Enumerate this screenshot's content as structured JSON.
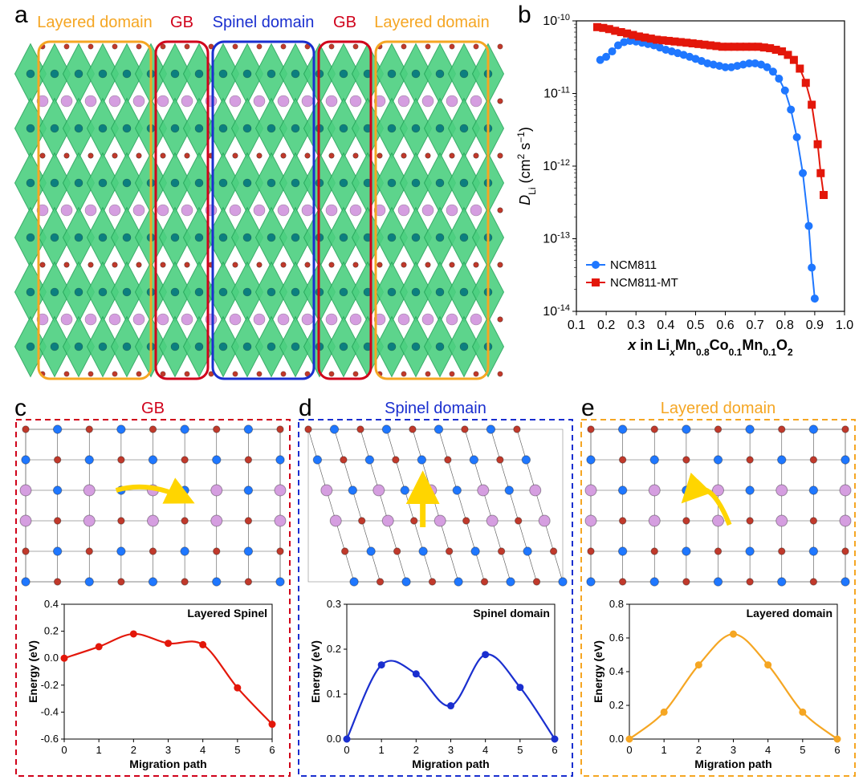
{
  "panels": {
    "a": {
      "label": "a"
    },
    "b": {
      "label": "b"
    },
    "c": {
      "label": "c"
    },
    "d": {
      "label": "d"
    },
    "e": {
      "label": "e"
    }
  },
  "panel_a": {
    "domain_labels": {
      "layered_left": {
        "text": "Layered domain",
        "color": "#f5a623"
      },
      "gb_left": {
        "text": "GB",
        "color": "#d0021b"
      },
      "spinel": {
        "text": "Spinel domain",
        "color": "#1a2fcf"
      },
      "gb_right": {
        "text": "GB",
        "color": "#d0021b"
      },
      "layered_right": {
        "text": "Layered domain",
        "color": "#f5a623"
      }
    },
    "box_colors": {
      "layered": "#f5a623",
      "gb": "#d0021b",
      "spinel": "#1a2fcf"
    },
    "atom_colors": {
      "polyhedra_fill": "#4cd080",
      "polyhedra_edge": "#26a65b",
      "metal": "#0c7f7f",
      "li": "#d59ee0",
      "o": "#c0392b"
    },
    "rows": 6,
    "layered_cols_each_side": 3,
    "spinel_cols": 2
  },
  "panel_b": {
    "type": "semilogy-scatter-line",
    "title": "",
    "xlabel_html": "<tspan font-style='italic'>x</tspan> in Li<tspan font-style='italic' baseline-shift='sub' font-size='12'>x</tspan>Mn<tspan baseline-shift='sub' font-size='12'>0.8</tspan>Co<tspan baseline-shift='sub' font-size='12'>0.1</tspan>Mn<tspan baseline-shift='sub' font-size='12'>0.1</tspan>O<tspan baseline-shift='sub' font-size='12'>2</tspan>",
    "ylabel_html": "<tspan font-style='italic'>D</tspan><tspan baseline-shift='sub' font-size='12'>Li</tspan> (cm<tspan baseline-shift='super' font-size='12'>2</tspan> s<tspan baseline-shift='super' font-size='12'>−1</tspan>)",
    "xlim": [
      0.1,
      1.0
    ],
    "xticks": [
      0.1,
      0.2,
      0.3,
      0.4,
      0.5,
      0.6,
      0.7,
      0.8,
      0.9,
      1.0
    ],
    "ylim": [
      1e-14,
      1e-10
    ],
    "yticks_exp": [
      -14,
      -13,
      -12,
      -11,
      -10
    ],
    "axis_fontsize": 18,
    "tick_fontsize": 16,
    "series": [
      {
        "name": "NCM811",
        "marker": "circle",
        "color": "#1f77ff",
        "data": [
          [
            0.18,
            2.9e-11
          ],
          [
            0.2,
            3.2e-11
          ],
          [
            0.22,
            3.8e-11
          ],
          [
            0.24,
            4.6e-11
          ],
          [
            0.26,
            5.1e-11
          ],
          [
            0.28,
            5.3e-11
          ],
          [
            0.3,
            5.2e-11
          ],
          [
            0.32,
            5e-11
          ],
          [
            0.34,
            4.8e-11
          ],
          [
            0.36,
            4.6e-11
          ],
          [
            0.38,
            4.3e-11
          ],
          [
            0.4,
            4e-11
          ],
          [
            0.42,
            3.8e-11
          ],
          [
            0.44,
            3.6e-11
          ],
          [
            0.46,
            3.4e-11
          ],
          [
            0.48,
            3.2e-11
          ],
          [
            0.5,
            3e-11
          ],
          [
            0.52,
            2.8e-11
          ],
          [
            0.54,
            2.6e-11
          ],
          [
            0.56,
            2.5e-11
          ],
          [
            0.58,
            2.4e-11
          ],
          [
            0.6,
            2.3e-11
          ],
          [
            0.62,
            2.3e-11
          ],
          [
            0.64,
            2.4e-11
          ],
          [
            0.66,
            2.5e-11
          ],
          [
            0.68,
            2.6e-11
          ],
          [
            0.7,
            2.6e-11
          ],
          [
            0.72,
            2.5e-11
          ],
          [
            0.74,
            2.3e-11
          ],
          [
            0.76,
            2e-11
          ],
          [
            0.78,
            1.6e-11
          ],
          [
            0.8,
            1.1e-11
          ],
          [
            0.82,
            6e-12
          ],
          [
            0.84,
            2.5e-12
          ],
          [
            0.86,
            8e-13
          ],
          [
            0.88,
            1.5e-13
          ],
          [
            0.89,
            4e-14
          ],
          [
            0.9,
            1.5e-14
          ]
        ]
      },
      {
        "name": "NCM811-MT",
        "marker": "square",
        "color": "#e3170a",
        "data": [
          [
            0.17,
            8.2e-11
          ],
          [
            0.19,
            8e-11
          ],
          [
            0.21,
            7.7e-11
          ],
          [
            0.23,
            7.3e-11
          ],
          [
            0.25,
            7e-11
          ],
          [
            0.27,
            6.7e-11
          ],
          [
            0.29,
            6.4e-11
          ],
          [
            0.31,
            6.1e-11
          ],
          [
            0.33,
            5.9e-11
          ],
          [
            0.35,
            5.7e-11
          ],
          [
            0.37,
            5.5e-11
          ],
          [
            0.39,
            5.4e-11
          ],
          [
            0.41,
            5.3e-11
          ],
          [
            0.43,
            5.2e-11
          ],
          [
            0.45,
            5.1e-11
          ],
          [
            0.47,
            5e-11
          ],
          [
            0.49,
            4.9e-11
          ],
          [
            0.51,
            4.8e-11
          ],
          [
            0.53,
            4.7e-11
          ],
          [
            0.55,
            4.6e-11
          ],
          [
            0.57,
            4.5e-11
          ],
          [
            0.59,
            4.4e-11
          ],
          [
            0.61,
            4.4e-11
          ],
          [
            0.63,
            4.4e-11
          ],
          [
            0.65,
            4.4e-11
          ],
          [
            0.67,
            4.4e-11
          ],
          [
            0.69,
            4.4e-11
          ],
          [
            0.71,
            4.4e-11
          ],
          [
            0.73,
            4.3e-11
          ],
          [
            0.75,
            4.2e-11
          ],
          [
            0.77,
            4e-11
          ],
          [
            0.79,
            3.8e-11
          ],
          [
            0.81,
            3.4e-11
          ],
          [
            0.83,
            2.9e-11
          ],
          [
            0.85,
            2.2e-11
          ],
          [
            0.87,
            1.4e-11
          ],
          [
            0.89,
            7e-12
          ],
          [
            0.91,
            2e-12
          ],
          [
            0.92,
            8e-13
          ],
          [
            0.93,
            4e-13
          ]
        ]
      }
    ],
    "legend_pos": "lower-left",
    "legend_fontsize": 15
  },
  "panel_c": {
    "title": "GB",
    "title_color": "#d0021b",
    "dash_color": "#d0021b",
    "atom_colors": {
      "metal": "#1f77ff",
      "li": "#d59ee0",
      "o": "#c0392b"
    },
    "path_arrow_color": "#ffd500",
    "chart": {
      "type": "line",
      "title": "Layered Spinel",
      "title_fontsize": 14,
      "xlabel": "Migration path",
      "ylabel": "Energy (eV)",
      "xlim": [
        0,
        6
      ],
      "xticks": [
        0,
        1,
        2,
        3,
        4,
        5,
        6
      ],
      "ylim": [
        -0.6,
        0.4
      ],
      "yticks": [
        -0.6,
        -0.4,
        -0.2,
        0.0,
        0.2,
        0.4
      ],
      "color": "#e3170a",
      "marker": "circle",
      "data": [
        [
          0,
          0.0
        ],
        [
          1,
          0.085
        ],
        [
          2,
          0.18
        ],
        [
          3,
          0.11
        ],
        [
          4,
          0.1
        ],
        [
          5,
          -0.22
        ],
        [
          6,
          -0.49
        ]
      ]
    }
  },
  "panel_d": {
    "title": "Spinel domain",
    "title_color": "#1a2fcf",
    "dash_color": "#1a2fcf",
    "atom_colors": {
      "metal": "#1f77ff",
      "li": "#d59ee0",
      "o": "#c0392b"
    },
    "path_arrow_color": "#ffd500",
    "chart": {
      "type": "line",
      "title": "Spinel domain",
      "title_fontsize": 14,
      "xlabel": "Migration path",
      "ylabel": "Energy (eV)",
      "xlim": [
        0,
        6
      ],
      "xticks": [
        0,
        1,
        2,
        3,
        4,
        5,
        6
      ],
      "ylim": [
        0.0,
        0.3
      ],
      "yticks": [
        0.0,
        0.1,
        0.2,
        0.3
      ],
      "color": "#1a2fcf",
      "marker": "circle",
      "data": [
        [
          0,
          0.0
        ],
        [
          1,
          0.165
        ],
        [
          2,
          0.145
        ],
        [
          3,
          0.074
        ],
        [
          4,
          0.188
        ],
        [
          5,
          0.115
        ],
        [
          6,
          0.0
        ]
      ]
    }
  },
  "panel_e": {
    "title": "Layered domain",
    "title_color": "#f5a623",
    "dash_color": "#f5a623",
    "atom_colors": {
      "metal": "#1f77ff",
      "li": "#d59ee0",
      "o": "#c0392b"
    },
    "path_arrow_color": "#ffd500",
    "chart": {
      "type": "line",
      "title": "Layered domain",
      "title_fontsize": 14,
      "xlabel": "Migration path",
      "ylabel": "Energy (eV)",
      "xlim": [
        0,
        6
      ],
      "xticks": [
        0,
        1,
        2,
        3,
        4,
        5,
        6
      ],
      "ylim": [
        0.0,
        0.8
      ],
      "yticks": [
        0.0,
        0.2,
        0.4,
        0.6,
        0.8
      ],
      "color": "#f5a623",
      "marker": "circle",
      "data": [
        [
          0,
          0.0
        ],
        [
          1,
          0.16
        ],
        [
          2,
          0.44
        ],
        [
          3,
          0.623
        ],
        [
          4,
          0.44
        ],
        [
          5,
          0.16
        ],
        [
          6,
          0.0
        ]
      ]
    }
  },
  "layout": {
    "figure_size": [
      1080,
      977
    ],
    "panel_a_box": [
      18,
      8,
      620,
      470
    ],
    "panel_b_box": [
      640,
      8,
      432,
      440
    ],
    "panel_c_box": [
      18,
      495,
      345,
      474
    ],
    "panel_d_box": [
      370,
      495,
      345,
      474
    ],
    "panel_e_box": [
      722,
      495,
      345,
      474
    ]
  },
  "common_chart_style": {
    "axis_color": "#000000",
    "tick_len": 5,
    "line_width": 2,
    "marker_size": 4.5,
    "background": "#ffffff"
  }
}
